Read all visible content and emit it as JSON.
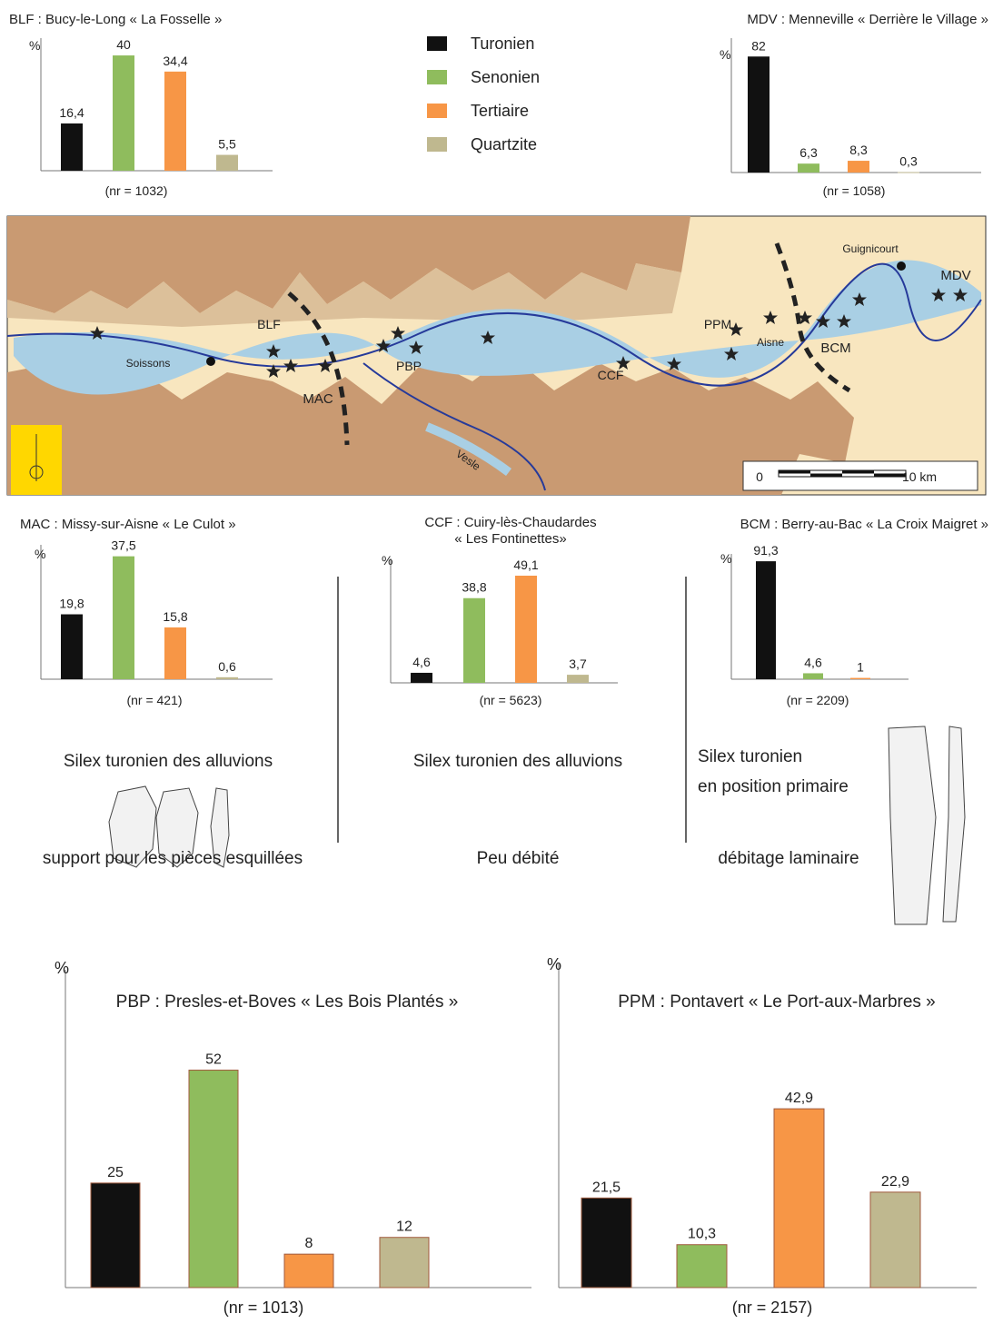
{
  "legend": [
    {
      "name": "Turonien",
      "color": "#111111"
    },
    {
      "name": "Senonien",
      "color": "#8fbc5d"
    },
    {
      "name": "Tertiaire",
      "color": "#f79646"
    },
    {
      "name": "Quartzite",
      "color": "#bfb88f"
    }
  ],
  "chart_data": [
    {
      "type": "bar",
      "title": [
        "BLF : Bucy-le-Long « La Fosselle »"
      ],
      "ylabel": "%",
      "note": "(nr = 1032)",
      "values": [
        16.4,
        40,
        34.4,
        5.5
      ],
      "value_labels": [
        "16,4",
        "40",
        "34,4",
        "5,5"
      ],
      "ylim": [
        0,
        46
      ]
    },
    {
      "type": "bar",
      "title": [
        "MDV : Menneville « Derrière le Village »"
      ],
      "ylabel": "%",
      "note": "(nr = 1058)",
      "values": [
        82,
        6.3,
        8.3,
        0.3
      ],
      "value_labels": [
        "82",
        "6,3",
        "8,3",
        "0,3"
      ],
      "ylim": [
        0,
        95
      ]
    },
    {
      "type": "bar",
      "title": [
        "MAC : Missy-sur-Aisne « Le Culot »"
      ],
      "ylabel": "%",
      "note": "(nr = 421)",
      "values": [
        19.8,
        37.5,
        15.8,
        0.6
      ],
      "value_labels": [
        "19,8",
        "37,5",
        "15,8",
        "0,6"
      ],
      "ylim": [
        0,
        41
      ]
    },
    {
      "type": "bar",
      "title": [
        "CCF : Cuiry-lès-Chaudardes",
        "« Les Fontinettes»"
      ],
      "ylabel": "%",
      "note": "(nr = 5623)",
      "values": [
        4.6,
        38.8,
        49.1,
        3.7
      ],
      "value_labels": [
        "4,6",
        "38,8",
        "49,1",
        "3,7"
      ],
      "ylim": [
        0,
        57
      ]
    },
    {
      "type": "bar",
      "title": [
        "BCM : Berry-au-Bac « La Croix Maigret »"
      ],
      "ylabel": "%",
      "note": "(nr = 2209)",
      "values": [
        91.3,
        4.6,
        1,
        null
      ],
      "value_labels": [
        "91,3",
        "4,6",
        "1",
        null
      ],
      "ylim": [
        0,
        97
      ]
    },
    {
      "type": "bar",
      "title": [
        "PBP : Presles-et-Boves « Les Bois Plantés »"
      ],
      "ylabel": "%",
      "note": "(nr = 1013)",
      "values": [
        25,
        52,
        8,
        12
      ],
      "value_labels": [
        "25",
        "52",
        "8",
        "12"
      ],
      "ylim": [
        0,
        76
      ]
    },
    {
      "type": "bar",
      "title": [
        "PPM : Pontavert « Le Port-aux-Marbres »"
      ],
      "ylabel": "%",
      "note": "(nr = 2157)",
      "values": [
        21.5,
        10.3,
        42.9,
        22.9
      ],
      "value_labels": [
        "21,5",
        "10,3",
        "42,9",
        "22,9"
      ],
      "ylim": [
        0,
        78
      ]
    }
  ],
  "map": {
    "labels": [
      "BLF",
      "MAC",
      "PBP",
      "CCF",
      "PPM",
      "BCM",
      "MDV",
      "Soissons",
      "Guignicourt",
      "Aisne",
      "Vesle",
      "0",
      "10 km"
    ]
  },
  "notes": {
    "mac_flint": "Silex turonien des alluvions",
    "ccf_flint": "Silex turonien des alluvions",
    "bcm_flint_1": "Silex turonien",
    "bcm_flint_2": "en position primaire",
    "mac_use": "support pour les pièces esquillées",
    "ccf_use": "Peu débité",
    "bcm_use": "débitage laminaire"
  }
}
